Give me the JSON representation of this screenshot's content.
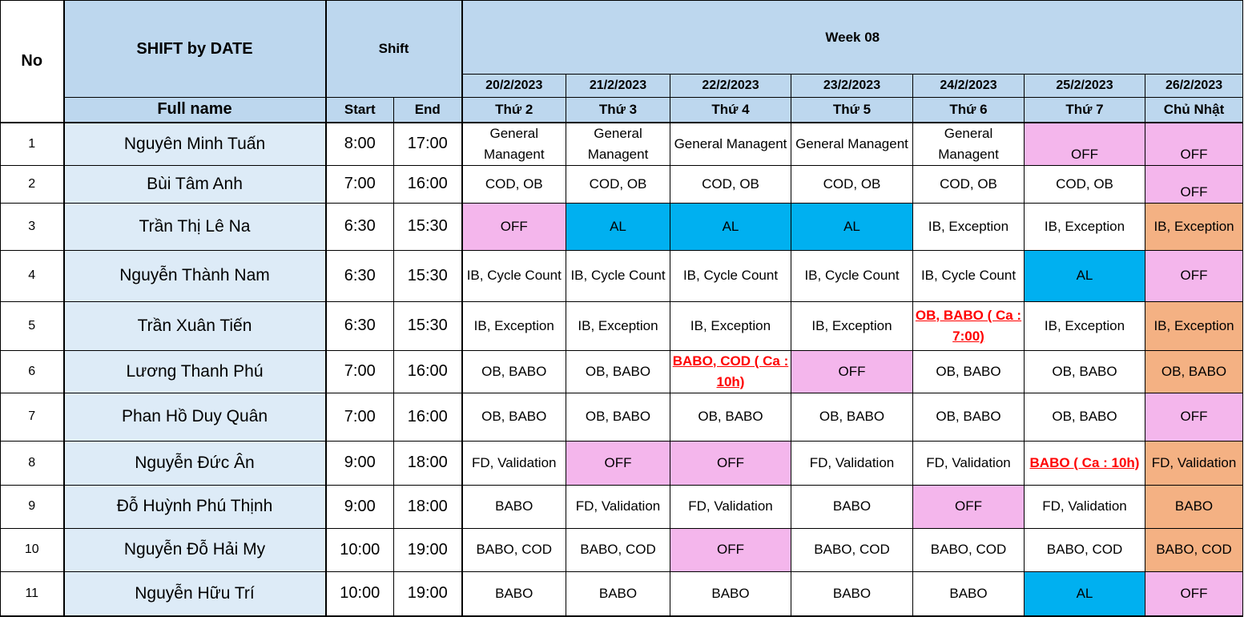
{
  "header": {
    "no": "No",
    "title": "SHIFT by DATE",
    "shift": "Shift",
    "week": "Week 08",
    "full_name": "Full name",
    "start": "Start",
    "end": "End",
    "dates": [
      "20/2/2023",
      "21/2/2023",
      "22/2/2023",
      "23/2/2023",
      "24/2/2023",
      "25/2/2023",
      "26/2/2023"
    ],
    "days": [
      "Thứ 2",
      "Thứ 3",
      "Thứ 4",
      "Thứ 5",
      "Thứ 6",
      "Thứ 7",
      "Chủ Nhật"
    ]
  },
  "colors": {
    "header_blue": "#bdd7ee",
    "name_blue": "#ddebf7",
    "off_pink": "#f4b6ec",
    "al_blue": "#00b0f0",
    "sunday_orange": "#f4b183",
    "highlight_red": "#ff0000"
  },
  "rows": [
    {
      "no": "1",
      "name": "Nguyên Minh Tuấn",
      "start": "8:00",
      "end": "17:00",
      "cells": [
        {
          "t": "General Managent"
        },
        {
          "t": "General Managent"
        },
        {
          "t": "General Managent"
        },
        {
          "t": "General Managent"
        },
        {
          "t": "General Managent"
        },
        {
          "t": "OFF",
          "s": "off",
          "b": 1
        },
        {
          "t": "OFF",
          "s": "off",
          "b": 1
        }
      ]
    },
    {
      "no": "2",
      "name": "Bùi Tâm Anh",
      "start": "7:00",
      "end": "16:00",
      "cells": [
        {
          "t": "COD, OB"
        },
        {
          "t": "COD, OB"
        },
        {
          "t": "COD, OB"
        },
        {
          "t": "COD, OB"
        },
        {
          "t": "COD, OB"
        },
        {
          "t": "COD, OB"
        },
        {
          "t": "OFF",
          "s": "off",
          "b": 1
        }
      ]
    },
    {
      "no": "3",
      "name": "Trần Thị Lê Na",
      "start": "6:30",
      "end": "15:30",
      "cells": [
        {
          "t": "OFF",
          "s": "off"
        },
        {
          "t": "AL",
          "s": "al"
        },
        {
          "t": "AL",
          "s": "al"
        },
        {
          "t": "AL",
          "s": "al"
        },
        {
          "t": "IB, Exception"
        },
        {
          "t": "IB, Exception"
        },
        {
          "t": "IB, Exception",
          "s": "orange"
        }
      ]
    },
    {
      "no": "4",
      "name": "Nguyễn Thành Nam",
      "start": "6:30",
      "end": "15:30",
      "cells": [
        {
          "t": "IB, Cycle Count"
        },
        {
          "t": "IB, Cycle Count"
        },
        {
          "t": "IB, Cycle Count"
        },
        {
          "t": "IB, Cycle Count"
        },
        {
          "t": "IB, Cycle Count"
        },
        {
          "t": "AL",
          "s": "al"
        },
        {
          "t": "OFF",
          "s": "off"
        }
      ]
    },
    {
      "no": "5",
      "name": "Trần Xuân Tiến",
      "start": "6:30",
      "end": "15:30",
      "cells": [
        {
          "t": "IB, Exception"
        },
        {
          "t": "IB, Exception"
        },
        {
          "t": "IB, Exception"
        },
        {
          "t": "IB, Exception"
        },
        {
          "t": "OB, BABO ( Ca : 7:00)",
          "s": "red"
        },
        {
          "t": "IB, Exception"
        },
        {
          "t": "IB, Exception",
          "s": "orange"
        }
      ]
    },
    {
      "no": "6",
      "name": "Lương Thanh Phú",
      "start": "7:00",
      "end": "16:00",
      "cells": [
        {
          "t": "OB, BABO"
        },
        {
          "t": "OB, BABO"
        },
        {
          "t": "BABO, COD ( Ca : 10h)",
          "s": "red"
        },
        {
          "t": "OFF",
          "s": "off"
        },
        {
          "t": "OB, BABO"
        },
        {
          "t": "OB, BABO"
        },
        {
          "t": "OB, BABO",
          "s": "orange"
        }
      ]
    },
    {
      "no": "7",
      "name": "Phan Hồ Duy Quân",
      "start": "7:00",
      "end": "16:00",
      "cells": [
        {
          "t": "OB, BABO"
        },
        {
          "t": "OB, BABO"
        },
        {
          "t": "OB, BABO"
        },
        {
          "t": "OB, BABO"
        },
        {
          "t": "OB, BABO"
        },
        {
          "t": "OB, BABO"
        },
        {
          "t": "OFF",
          "s": "off"
        }
      ]
    },
    {
      "no": "8",
      "name": "Nguyễn Đức Ân",
      "start": "9:00",
      "end": "18:00",
      "cells": [
        {
          "t": "FD, Validation"
        },
        {
          "t": "OFF",
          "s": "off"
        },
        {
          "t": "OFF",
          "s": "off"
        },
        {
          "t": "FD, Validation"
        },
        {
          "t": "FD, Validation"
        },
        {
          "t": "BABO ( Ca : 10h)",
          "s": "red"
        },
        {
          "t": "FD, Validation",
          "s": "orange"
        }
      ]
    },
    {
      "no": "9",
      "name": "Đỗ Huỳnh Phú Thịnh",
      "start": "9:00",
      "end": "18:00",
      "cells": [
        {
          "t": "BABO"
        },
        {
          "t": "FD, Validation"
        },
        {
          "t": "FD, Validation"
        },
        {
          "t": "BABO"
        },
        {
          "t": "OFF",
          "s": "off"
        },
        {
          "t": "FD, Validation"
        },
        {
          "t": "BABO",
          "s": "orange"
        }
      ]
    },
    {
      "no": "10",
      "name": "Nguyễn Đỗ Hải My",
      "start": "10:00",
      "end": "19:00",
      "cells": [
        {
          "t": "BABO, COD"
        },
        {
          "t": "BABO, COD"
        },
        {
          "t": "OFF",
          "s": "off"
        },
        {
          "t": "BABO, COD"
        },
        {
          "t": "BABO, COD"
        },
        {
          "t": "BABO, COD"
        },
        {
          "t": "BABO, COD",
          "s": "orange"
        }
      ]
    },
    {
      "no": "11",
      "name": "Nguyễn Hữu Trí",
      "start": "10:00",
      "end": "19:00",
      "cells": [
        {
          "t": "BABO"
        },
        {
          "t": "BABO"
        },
        {
          "t": "BABO"
        },
        {
          "t": "BABO"
        },
        {
          "t": "BABO"
        },
        {
          "t": "AL",
          "s": "al"
        },
        {
          "t": "OFF",
          "s": "off"
        }
      ]
    }
  ]
}
